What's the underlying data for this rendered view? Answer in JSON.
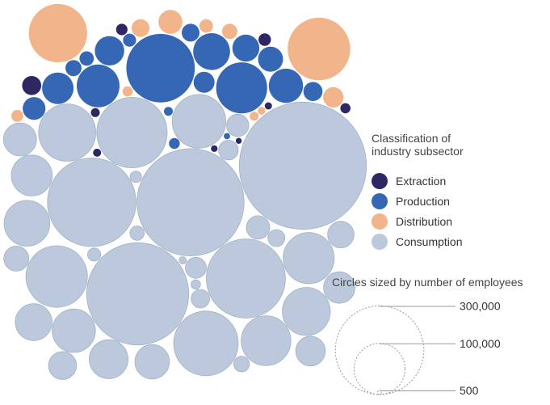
{
  "chart_data": {
    "type": "bubble",
    "legend": {
      "title_lines": [
        "Classification of",
        "industry subsector"
      ],
      "placement": "right",
      "categories": [
        {
          "key": "extraction",
          "label": "Extraction",
          "color": "#2d2763"
        },
        {
          "key": "production",
          "label": "Production",
          "color": "#3567b5"
        },
        {
          "key": "distribution",
          "label": "Distribution",
          "color": "#f2b48a"
        },
        {
          "key": "consumption",
          "label": "Consumption",
          "color": "#bcc9dc"
        }
      ]
    },
    "size_legend": {
      "title": "Circles sized by number of employees",
      "entries": [
        {
          "value": 300000,
          "label": "300,000"
        },
        {
          "value": 100000,
          "label": "100,000"
        },
        {
          "value": 500,
          "label": "500"
        }
      ]
    },
    "bubbles": [
      {
        "category": "consumption",
        "employees": 620000
      },
      {
        "category": "consumption",
        "employees": 440000
      },
      {
        "category": "consumption",
        "employees": 400000
      },
      {
        "category": "consumption",
        "employees": 300000
      },
      {
        "category": "consumption",
        "employees": 240000
      },
      {
        "category": "consumption",
        "employees": 190000
      },
      {
        "category": "consumption",
        "employees": 160000
      },
      {
        "category": "consumption",
        "employees": 145000
      },
      {
        "category": "consumption",
        "employees": 125000
      },
      {
        "category": "consumption",
        "employees": 110000
      },
      {
        "category": "consumption",
        "employees": 100000
      },
      {
        "category": "consumption",
        "employees": 95000
      },
      {
        "category": "consumption",
        "employees": 88000
      },
      {
        "category": "consumption",
        "employees": 80000
      },
      {
        "category": "consumption",
        "employees": 72000
      },
      {
        "category": "consumption",
        "employees": 64000
      },
      {
        "category": "consumption",
        "employees": 58000
      },
      {
        "category": "consumption",
        "employees": 52000
      },
      {
        "category": "consumption",
        "employees": 46000
      },
      {
        "category": "consumption",
        "employees": 42000
      },
      {
        "category": "consumption",
        "employees": 38000
      },
      {
        "category": "consumption",
        "employees": 34000
      },
      {
        "category": "consumption",
        "employees": 30000
      },
      {
        "category": "consumption",
        "employees": 27000
      },
      {
        "category": "consumption",
        "employees": 24000
      },
      {
        "category": "consumption",
        "employees": 21000
      },
      {
        "category": "consumption",
        "employees": 19000
      },
      {
        "category": "consumption",
        "employees": 17000
      },
      {
        "category": "consumption",
        "employees": 15000
      },
      {
        "category": "consumption",
        "employees": 13000
      },
      {
        "category": "consumption",
        "employees": 11000
      },
      {
        "category": "consumption",
        "employees": 9500
      },
      {
        "category": "consumption",
        "employees": 8000
      },
      {
        "category": "consumption",
        "employees": 6500
      },
      {
        "category": "consumption",
        "employees": 5000
      },
      {
        "category": "consumption",
        "employees": 3500
      },
      {
        "category": "consumption",
        "employees": 2000
      },
      {
        "category": "production",
        "employees": 180000
      },
      {
        "category": "production",
        "employees": 100000
      },
      {
        "category": "production",
        "employees": 70000
      },
      {
        "category": "production",
        "employees": 52000
      },
      {
        "category": "production",
        "employees": 45000
      },
      {
        "category": "production",
        "employees": 38000
      },
      {
        "category": "production",
        "employees": 33000
      },
      {
        "category": "production",
        "employees": 28000
      },
      {
        "category": "production",
        "employees": 24000
      },
      {
        "category": "production",
        "employees": 20000
      },
      {
        "category": "production",
        "employees": 17000
      },
      {
        "category": "production",
        "employees": 14000
      },
      {
        "category": "production",
        "employees": 12000
      },
      {
        "category": "production",
        "employees": 10000
      },
      {
        "category": "production",
        "employees": 8000
      },
      {
        "category": "production",
        "employees": 6500
      },
      {
        "category": "production",
        "employees": 4500
      },
      {
        "category": "production",
        "employees": 3000
      },
      {
        "category": "production",
        "employees": 1500
      },
      {
        "category": "distribution",
        "employees": 150000
      },
      {
        "category": "distribution",
        "employees": 130000
      },
      {
        "category": "distribution",
        "employees": 22000
      },
      {
        "category": "distribution",
        "employees": 16000
      },
      {
        "category": "distribution",
        "employees": 12000
      },
      {
        "category": "distribution",
        "employees": 9000
      },
      {
        "category": "distribution",
        "employees": 7000
      },
      {
        "category": "distribution",
        "employees": 5500
      },
      {
        "category": "distribution",
        "employees": 4000
      },
      {
        "category": "distribution",
        "employees": 3000
      },
      {
        "category": "distribution",
        "employees": 2200
      },
      {
        "category": "extraction",
        "employees": 14000
      },
      {
        "category": "extraction",
        "employees": 6000
      },
      {
        "category": "extraction",
        "employees": 5000
      },
      {
        "category": "extraction",
        "employees": 4000
      },
      {
        "category": "extraction",
        "employees": 3000
      },
      {
        "category": "extraction",
        "employees": 2500
      },
      {
        "category": "extraction",
        "employees": 2000
      },
      {
        "category": "extraction",
        "employees": 1700
      },
      {
        "category": "extraction",
        "employees": 1400
      }
    ]
  }
}
